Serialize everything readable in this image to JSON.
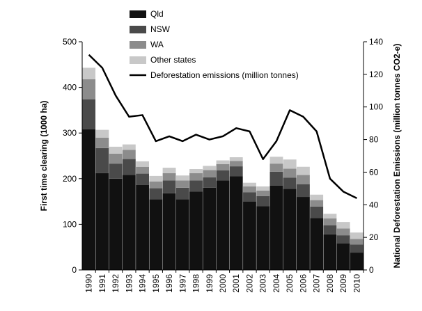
{
  "chart_data": {
    "type": "bar",
    "subtype": "stacked-bar-with-line",
    "categories": [
      "1990",
      "1991",
      "1992",
      "1993",
      "1994",
      "1995",
      "1996",
      "1997",
      "1998",
      "1999",
      "2000",
      "2001",
      "2002",
      "2003",
      "2004",
      "2005",
      "2006",
      "2007",
      "2008",
      "2009",
      "2010"
    ],
    "series": [
      {
        "name": "Qld",
        "color": "#111111",
        "values": [
          308,
          212,
          200,
          208,
          186,
          155,
          168,
          155,
          172,
          180,
          196,
          205,
          150,
          140,
          185,
          178,
          160,
          114,
          78,
          58,
          38
        ]
      },
      {
        "name": "NSW",
        "color": "#4a4a4a",
        "values": [
          66,
          55,
          33,
          35,
          25,
          24,
          28,
          25,
          24,
          23,
          22,
          22,
          20,
          22,
          30,
          24,
          28,
          25,
          20,
          18,
          18
        ]
      },
      {
        "name": "WA",
        "color": "#8c8c8c",
        "values": [
          44,
          23,
          22,
          20,
          15,
          15,
          16,
          16,
          16,
          16,
          14,
          12,
          13,
          12,
          18,
          20,
          20,
          14,
          15,
          15,
          12
        ]
      },
      {
        "name": "Other states",
        "color": "#c8c8c8",
        "values": [
          25,
          17,
          15,
          12,
          12,
          12,
          12,
          11,
          9,
          9,
          8,
          8,
          8,
          9,
          15,
          20,
          18,
          12,
          10,
          14,
          14
        ]
      }
    ],
    "line_series": {
      "name": "Deforestation emissions (million tonnes)",
      "color": "#000000",
      "axis": "right",
      "values": [
        132,
        124,
        107,
        94,
        95,
        79,
        82,
        79,
        83,
        80,
        82,
        87,
        85,
        68,
        79,
        98,
        94,
        85,
        56,
        48,
        44
      ]
    },
    "ylabel": "First time clearing (1000 ha)",
    "y2label": "National Deforestation Emissions (million tonnes CO2-e)",
    "ylim": [
      0,
      500
    ],
    "y2lim": [
      0,
      140
    ],
    "yticks": [
      0,
      100,
      200,
      300,
      400,
      500
    ],
    "y2ticks": [
      0,
      20,
      40,
      60,
      80,
      100,
      120,
      140
    ],
    "legend_position": "top-left",
    "grid": false
  }
}
